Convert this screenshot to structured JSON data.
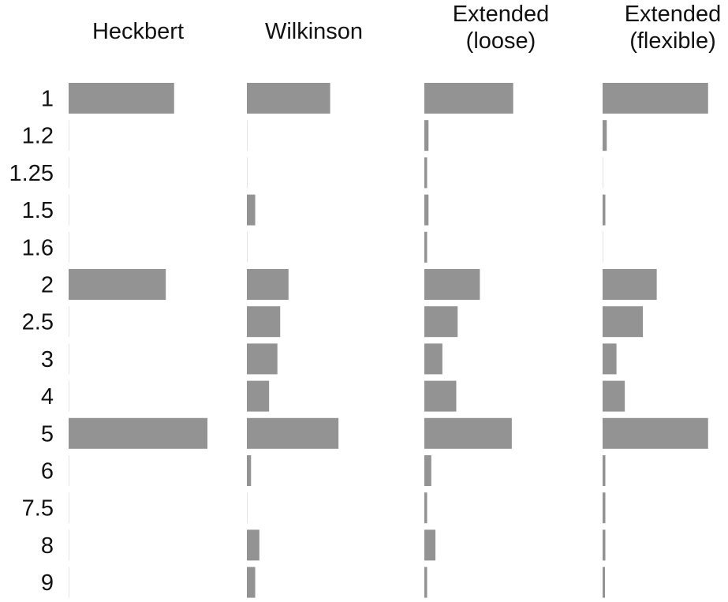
{
  "chart_data": {
    "type": "bar",
    "orientation": "horizontal",
    "grid": false,
    "legend": "none",
    "bar_color": "#939393",
    "baseline_color": "#e3e3e3",
    "categories": [
      "1",
      "1.2",
      "1.25",
      "1.5",
      "1.6",
      "2",
      "2.5",
      "3",
      "4",
      "5",
      "6",
      "7.5",
      "8",
      "9"
    ],
    "series": [
      {
        "name": "Heckbert",
        "label_lines": [
          "Heckbert"
        ],
        "values": [
          0.76,
          0,
          0,
          0,
          0,
          0.7,
          0,
          0,
          0,
          1.0,
          0,
          0,
          0,
          0
        ]
      },
      {
        "name": "Wilkinson",
        "label_lines": [
          "Wilkinson"
        ],
        "values": [
          0.6,
          0,
          0,
          0.06,
          0,
          0.3,
          0.24,
          0.22,
          0.16,
          0.66,
          0.03,
          0,
          0.09,
          0.06
        ]
      },
      {
        "name": "Extended (loose)",
        "label_lines": [
          "Extended",
          "(loose)"
        ],
        "values": [
          0.64,
          0.03,
          0.02,
          0.03,
          0.02,
          0.4,
          0.24,
          0.13,
          0.23,
          0.63,
          0.05,
          0.02,
          0.08,
          0.02
        ]
      },
      {
        "name": "Extended (flexible)",
        "label_lines": [
          "Extended",
          "(flexible)"
        ],
        "values": [
          0.76,
          0.03,
          0,
          0.02,
          0,
          0.39,
          0.29,
          0.1,
          0.16,
          0.76,
          0.02,
          0.02,
          0.02,
          0.01
        ]
      }
    ]
  }
}
